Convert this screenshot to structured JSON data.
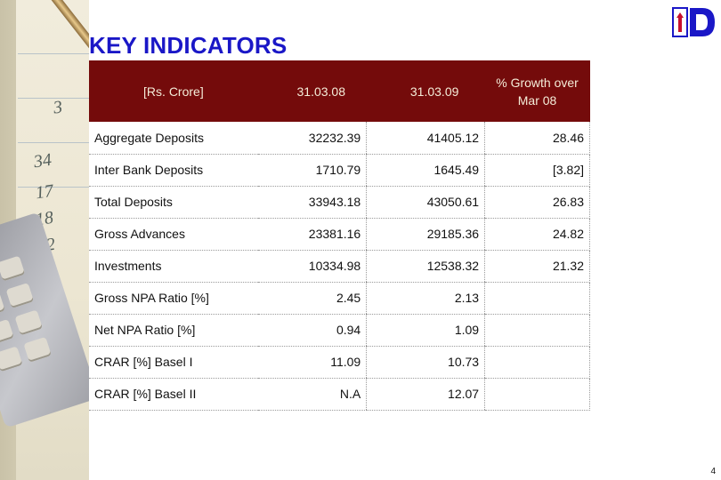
{
  "slide": {
    "title": "KEY INDICATORS",
    "page_number": "4"
  },
  "table": {
    "headers": [
      "[Rs. Crore]",
      "31.03.08",
      "31.03.09",
      "% Growth over Mar 08"
    ],
    "rows": [
      {
        "label": "Aggregate Deposits",
        "v08": "32232.39",
        "v09": "41405.12",
        "growth": "28.46"
      },
      {
        "label": "Inter Bank Deposits",
        "v08": "1710.79",
        "v09": "1645.49",
        "growth": "[3.82]"
      },
      {
        "label": "Total Deposits",
        "v08": "33943.18",
        "v09": "43050.61",
        "growth": "26.83"
      },
      {
        "label": "Gross Advances",
        "v08": "23381.16",
        "v09": "29185.36",
        "growth": "24.82"
      },
      {
        "label": "Investments",
        "v08": "10334.98",
        "v09": "12538.32",
        "growth": "21.32"
      },
      {
        "label": "Gross NPA Ratio [%]",
        "v08": "2.45",
        "v09": "2.13",
        "growth": ""
      },
      {
        "label": "Net NPA Ratio [%]",
        "v08": "0.94",
        "v09": "1.09",
        "growth": ""
      },
      {
        "label": "CRAR [%] Basel I",
        "v08": "11.09",
        "v09": "10.73",
        "growth": ""
      },
      {
        "label": "CRAR [%] Basel II",
        "v08": "N.A",
        "v09": "12.07",
        "growth": ""
      }
    ]
  },
  "colors": {
    "title": "#1a17c7",
    "header_bg": "#740b0b",
    "header_text": "#f4ecd8",
    "negative": "#c8102e"
  },
  "decor": {
    "side_image": "office-desk-calculator-pen-photo",
    "logo": "bank-logo-icon"
  }
}
